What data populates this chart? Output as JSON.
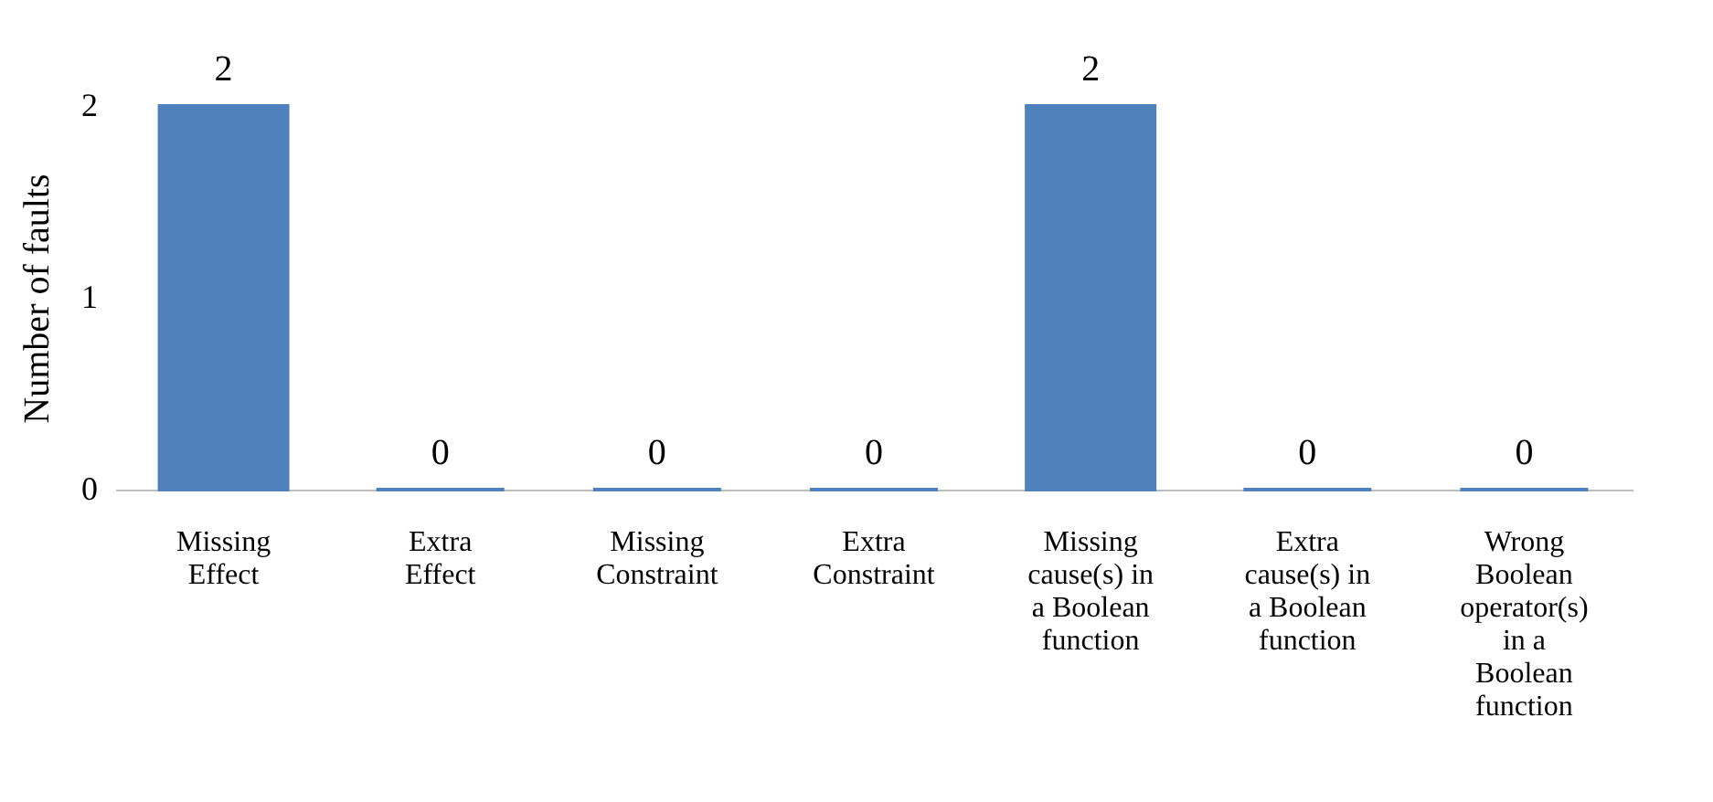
{
  "chart_data": {
    "type": "bar",
    "ylabel": "Number of faults",
    "categories": [
      "Missing Effect",
      "Extra Effect",
      "Missing Constraint",
      "Extra Constraint",
      "Missing cause(s) in a Boolean function",
      "Extra cause(s) in a Boolean function",
      "Wrong Boolean operator(s) in a Boolean function"
    ],
    "values": [
      2,
      0,
      0,
      0,
      2,
      0,
      0
    ],
    "color": "#4f81bd",
    "ylim": [
      0,
      2
    ],
    "yticks": [
      0,
      1,
      2
    ],
    "grid": false,
    "data_labels": true
  }
}
